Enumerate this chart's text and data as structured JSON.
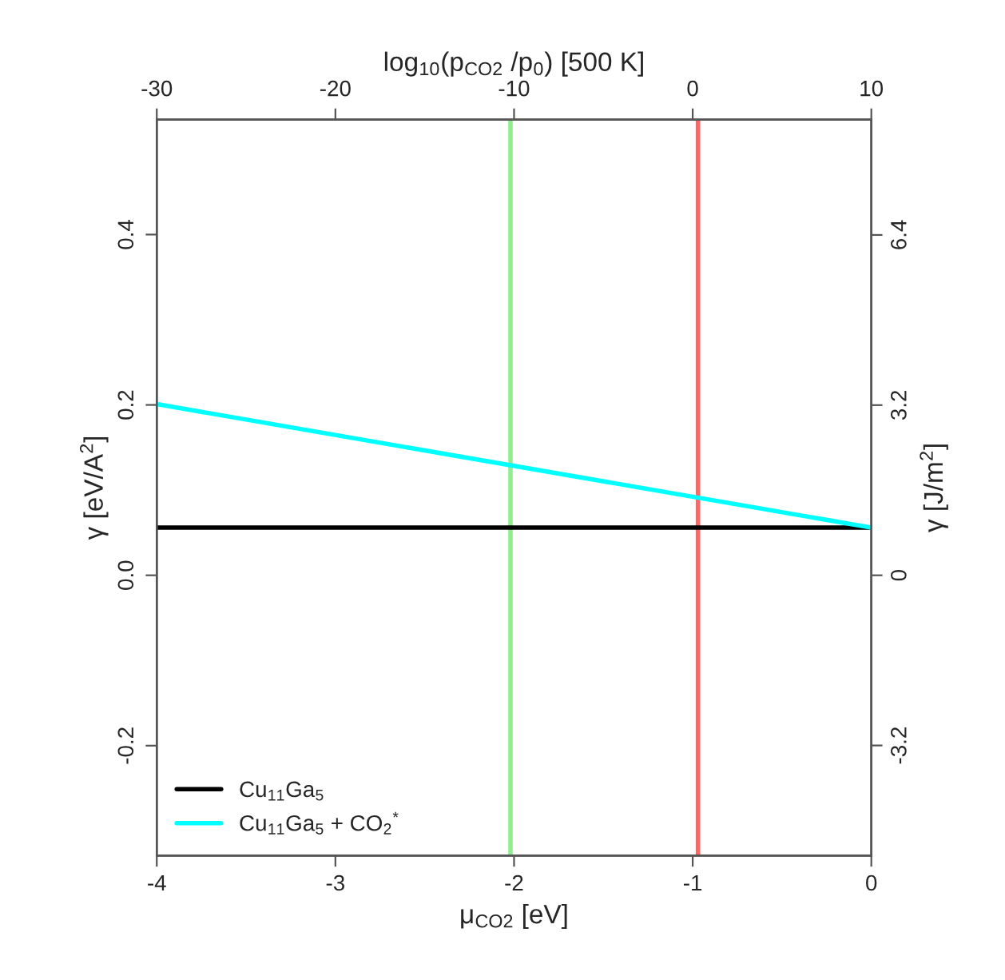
{
  "chart_data": {
    "type": "line",
    "xlabel": "μ$_{CO2}$ [eV]",
    "ylabel": "γ [eV/A$^{2}$]",
    "y2label": "γ [J/m$^{2}$]",
    "x2label": "log$_{10}$(p$_{CO2}$ /p$_{0}$) [500 K]",
    "x": [
      -4,
      0
    ],
    "series": [
      {
        "name": "Cu$_{11}$Ga$_{5}$",
        "color": "#000000",
        "values": [
          0.056,
          0.056
        ]
      },
      {
        "name": "Cu$_{11}$Ga$_{5}$ + CO$_{2}$$^{*}$",
        "color": "#00ffff",
        "values": [
          0.201,
          0.056
        ]
      }
    ],
    "xlim": [
      -4,
      0
    ],
    "xticks": [
      -4,
      -3,
      -2,
      -1,
      0
    ],
    "ylim": [
      -0.329,
      0.535
    ],
    "yticks": [
      -0.2,
      {
        "value": 0,
        "label": "0.0"
      },
      0.2,
      0.4
    ],
    "y2lim": [
      -5.27,
      8.57
    ],
    "y2ticks": [
      -3.2,
      0,
      3.2,
      6.4
    ],
    "x2lim": [
      -30,
      10
    ],
    "x2ticks": [
      -30,
      -20,
      -10,
      0,
      10
    ],
    "ref_lines": [
      {
        "axis": "x",
        "value": -2.02,
        "color": "#90ee90"
      },
      {
        "axis": "x",
        "value": -0.97,
        "color": "#ff6666"
      }
    ],
    "grid": false,
    "legend": "bottom left",
    "line_style": "solid",
    "marker": "none"
  }
}
